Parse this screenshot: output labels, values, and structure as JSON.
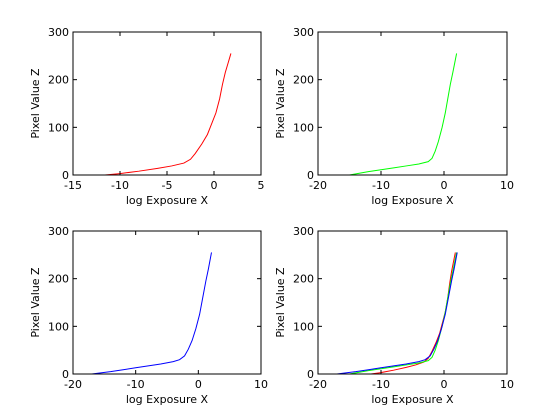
{
  "chart_data": [
    {
      "type": "line",
      "xlabel": "log Exposure X",
      "ylabel": "Pixel Value Z",
      "xlim": [
        -15,
        5
      ],
      "ylim": [
        0,
        300
      ],
      "xticks": [
        -15,
        -10,
        -5,
        0,
        5
      ],
      "yticks": [
        0,
        100,
        200,
        300
      ],
      "grid": false,
      "series": [
        {
          "color": "#ff0000",
          "points": [
            [
              -11.6,
              0
            ],
            [
              -10,
              3
            ],
            [
              -8,
              8
            ],
            [
              -6,
              14
            ],
            [
              -4.5,
              19
            ],
            [
              -3.2,
              25
            ],
            [
              -2.5,
              33
            ],
            [
              -2,
              45
            ],
            [
              -1.3,
              65
            ],
            [
              -0.7,
              85
            ],
            [
              -0.2,
              110
            ],
            [
              0.2,
              130
            ],
            [
              0.6,
              160
            ],
            [
              0.9,
              190
            ],
            [
              1.2,
              215
            ],
            [
              1.5,
              235
            ],
            [
              1.8,
              255
            ]
          ]
        }
      ]
    },
    {
      "type": "line",
      "xlabel": "log Exposure X",
      "ylabel": "Pixel Value Z",
      "xlim": [
        -20,
        10
      ],
      "ylim": [
        0,
        300
      ],
      "xticks": [
        -20,
        -10,
        0,
        10
      ],
      "yticks": [
        0,
        100,
        200,
        300
      ],
      "grid": false,
      "series": [
        {
          "color": "#00ff00",
          "points": [
            [
              -15,
              0
            ],
            [
              -12,
              7
            ],
            [
              -10,
              11
            ],
            [
              -8,
              15
            ],
            [
              -6,
              19
            ],
            [
              -4,
              23
            ],
            [
              -2.5,
              28
            ],
            [
              -1.9,
              35
            ],
            [
              -1.4,
              50
            ],
            [
              -0.9,
              70
            ],
            [
              -0.3,
              100
            ],
            [
              0.2,
              130
            ],
            [
              0.6,
              160
            ],
            [
              1.0,
              190
            ],
            [
              1.4,
              215
            ],
            [
              1.7,
              235
            ],
            [
              2.0,
              255
            ]
          ]
        }
      ]
    },
    {
      "type": "line",
      "xlabel": "log Exposure X",
      "ylabel": "Pixel Value Z",
      "xlim": [
        -20,
        10
      ],
      "ylim": [
        0,
        300
      ],
      "xticks": [
        -20,
        -10,
        0,
        10
      ],
      "yticks": [
        0,
        100,
        200,
        300
      ],
      "grid": false,
      "series": [
        {
          "color": "#0000ff",
          "points": [
            [
              -17,
              0
            ],
            [
              -14,
              5
            ],
            [
              -12,
              9
            ],
            [
              -10,
              13
            ],
            [
              -8,
              17
            ],
            [
              -6,
              21
            ],
            [
              -4,
              26
            ],
            [
              -3,
              30
            ],
            [
              -2.2,
              38
            ],
            [
              -1.6,
              52
            ],
            [
              -1.0,
              70
            ],
            [
              -0.4,
              95
            ],
            [
              0.2,
              125
            ],
            [
              0.7,
              160
            ],
            [
              1.2,
              195
            ],
            [
              1.6,
              220
            ],
            [
              2.1,
              255
            ]
          ]
        }
      ]
    },
    {
      "type": "line",
      "xlabel": "log Exposure X",
      "ylabel": "Pixel Value Z",
      "xlim": [
        -20,
        10
      ],
      "ylim": [
        0,
        300
      ],
      "xticks": [
        -20,
        -10,
        0,
        10
      ],
      "yticks": [
        0,
        100,
        200,
        300
      ],
      "grid": false,
      "series": [
        {
          "color": "#ff0000",
          "points": [
            [
              -11.6,
              0
            ],
            [
              -10,
              3
            ],
            [
              -8,
              8
            ],
            [
              -6,
              14
            ],
            [
              -4.5,
              19
            ],
            [
              -3.2,
              25
            ],
            [
              -2.5,
              33
            ],
            [
              -2,
              45
            ],
            [
              -1.3,
              65
            ],
            [
              -0.7,
              85
            ],
            [
              -0.2,
              110
            ],
            [
              0.2,
              130
            ],
            [
              0.6,
              160
            ],
            [
              0.9,
              190
            ],
            [
              1.2,
              215
            ],
            [
              1.5,
              235
            ],
            [
              1.8,
              255
            ]
          ]
        },
        {
          "color": "#00ff00",
          "points": [
            [
              -15,
              0
            ],
            [
              -12,
              7
            ],
            [
              -10,
              11
            ],
            [
              -8,
              15
            ],
            [
              -6,
              19
            ],
            [
              -4,
              23
            ],
            [
              -2.5,
              28
            ],
            [
              -1.9,
              35
            ],
            [
              -1.4,
              50
            ],
            [
              -0.9,
              70
            ],
            [
              -0.3,
              100
            ],
            [
              0.2,
              130
            ],
            [
              0.6,
              160
            ],
            [
              1.0,
              190
            ],
            [
              1.4,
              215
            ],
            [
              1.7,
              235
            ],
            [
              2.0,
              255
            ]
          ]
        },
        {
          "color": "#0000ff",
          "points": [
            [
              -17,
              0
            ],
            [
              -14,
              5
            ],
            [
              -12,
              9
            ],
            [
              -10,
              13
            ],
            [
              -8,
              17
            ],
            [
              -6,
              21
            ],
            [
              -4,
              26
            ],
            [
              -3,
              30
            ],
            [
              -2.2,
              38
            ],
            [
              -1.6,
              52
            ],
            [
              -1.0,
              70
            ],
            [
              -0.4,
              95
            ],
            [
              0.2,
              125
            ],
            [
              0.7,
              160
            ],
            [
              1.2,
              195
            ],
            [
              1.6,
              220
            ],
            [
              2.1,
              255
            ]
          ]
        }
      ]
    }
  ]
}
